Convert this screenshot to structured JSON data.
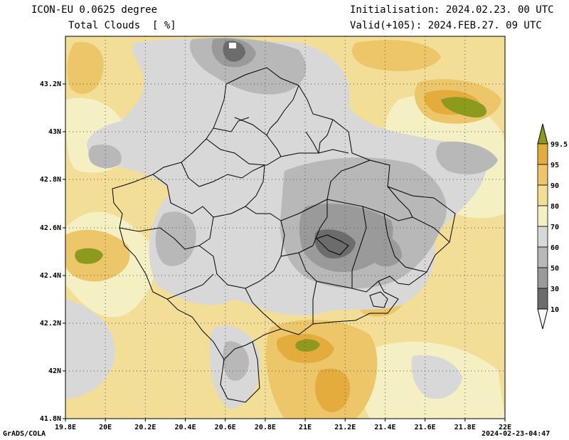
{
  "header": {
    "model": "ICON-EU 0.0625 degree",
    "field": "Total Clouds  [ %]",
    "init": "Initialisation: 2024.02.23. 00 UTC",
    "valid": "Valid(+105): 2024.FEB.27. 09 UTC"
  },
  "footer": {
    "left": "GrADS/COLA",
    "right": "2024-02-23-04:47"
  },
  "map": {
    "lat_labels": [
      "43.2N",
      "43N",
      "42.8N",
      "42.6N",
      "42.4N",
      "42.2N",
      "42N",
      "41.8N"
    ],
    "lon_labels": [
      "19.8E",
      "20E",
      "20.2E",
      "20.4E",
      "20.6E",
      "20.8E",
      "21E",
      "21.2E",
      "21.4E",
      "21.6E",
      "21.8E",
      "22E"
    ]
  },
  "colorbar": {
    "labels": [
      "99.5",
      "95",
      "90",
      "80",
      "70",
      "60",
      "50",
      "30",
      "10"
    ],
    "colors": {
      "top_arrow": "#8c9a1e",
      "b95": "#e4ac3c",
      "b90": "#ecc668",
      "b80": "#f2de96",
      "b70": "#f4f0c4",
      "b60": "#d8d8d8",
      "b50": "#b8b8b8",
      "b30": "#9a9a9a",
      "b10": "#6c6c6c",
      "bottom_arrow": "#f6f6f6"
    }
  }
}
